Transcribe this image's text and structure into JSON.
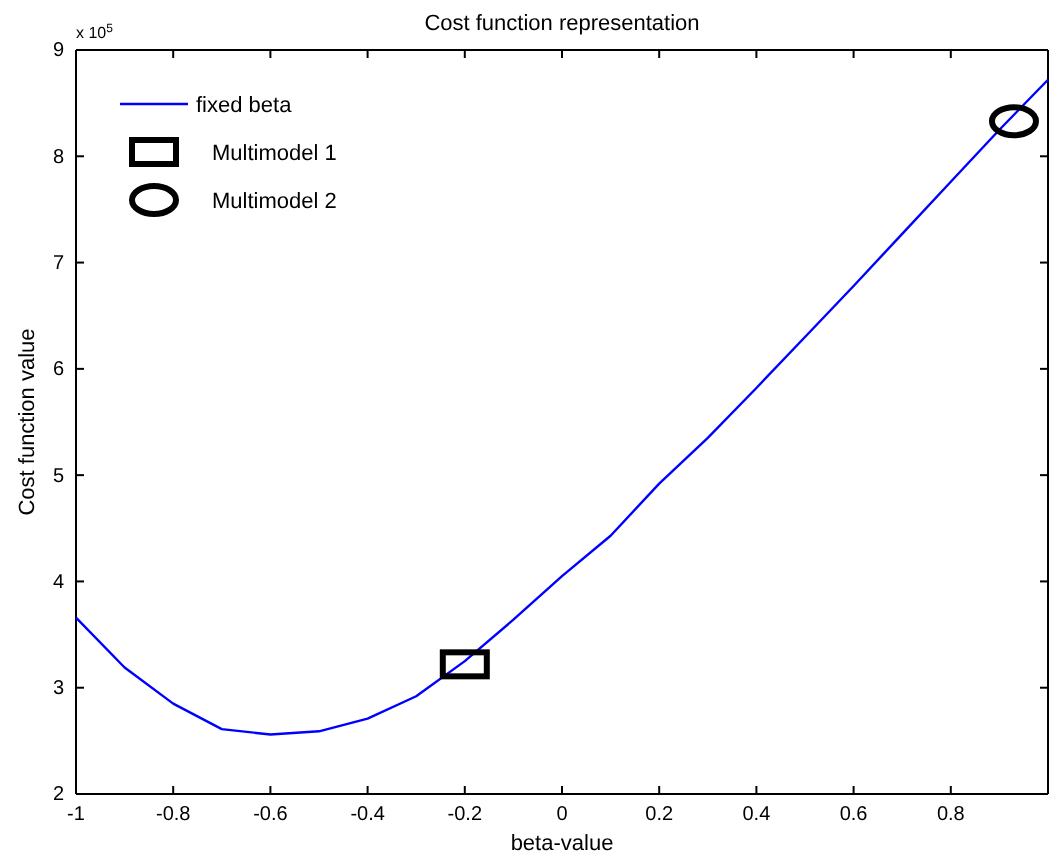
{
  "chart_data": {
    "type": "line",
    "title": "Cost function representation",
    "xlabel": "beta-value",
    "ylabel": "Cost function value",
    "annotations": [
      "x 10$^{5}$"
    ],
    "xlim": [
      -1,
      1
    ],
    "xticks": [
      -1,
      -0.8,
      -0.6,
      -0.4,
      -0.2,
      0,
      0.2,
      0.4,
      0.6,
      0.8
    ],
    "ylim": [
      2,
      9
    ],
    "yticks": [
      2,
      3,
      4,
      5,
      6,
      7,
      8,
      9
    ],
    "grid": false,
    "legend": "top left",
    "series": [
      {
        "name": "fixed beta",
        "type": "line",
        "color": "#0000ff",
        "marker": "none",
        "x": [
          -1,
          -0.9,
          -0.8,
          -0.7,
          -0.6,
          -0.5,
          -0.4,
          -0.3,
          -0.2,
          -0.1,
          0,
          0.1,
          0.2,
          0.3,
          0.4,
          0.5,
          0.6,
          0.7,
          0.8,
          0.9,
          1
        ],
        "values": [
          3.66,
          3.19,
          2.85,
          2.61,
          2.56,
          2.59,
          2.71,
          2.92,
          3.25,
          3.64,
          4.05,
          4.43,
          4.92,
          5.35,
          5.82,
          6.3,
          6.78,
          7.27,
          7.76,
          8.25,
          8.72
        ]
      },
      {
        "name": "Multimodel 1",
        "type": "scatter",
        "color": "#000000",
        "marker": "square",
        "x": [
          -0.2
        ],
        "values": [
          3.22
        ]
      },
      {
        "name": "Multimodel 2",
        "type": "scatter",
        "color": "#000000",
        "marker": "circle",
        "x": [
          0.93
        ],
        "values": [
          8.33
        ]
      }
    ]
  }
}
